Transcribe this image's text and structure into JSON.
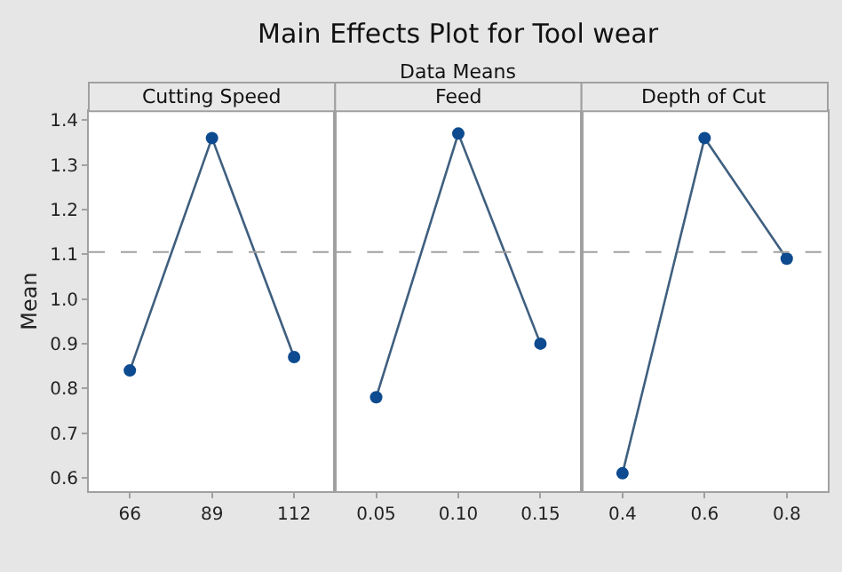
{
  "chart_data": [
    {
      "type": "line",
      "title": "Cutting Speed",
      "annotations": [
        "Main Effects Plot for Tool wear",
        "Data Means"
      ],
      "ylabel": "Mean",
      "categories": [
        "66",
        "89",
        "112"
      ],
      "series": [
        {
          "color": "#0d4a8f",
          "values": [
            0.84,
            1.36,
            0.87
          ]
        }
      ],
      "ylim": [
        0.57,
        1.42
      ],
      "yticks": [
        0.6,
        0.7,
        0.8,
        0.9,
        {
          "value": 1,
          "label": "1.0"
        },
        1.1,
        1.2,
        1.3,
        1.4
      ],
      "ref_lines": [
        {
          "axis": "y",
          "value": 1.105,
          "color": "#a0a0a0",
          "line_style": "dashed"
        }
      ],
      "marker": "circle"
    },
    {
      "type": "line",
      "title": "Feed",
      "categories": [
        "0.05",
        "0.10",
        "0.15"
      ],
      "series": [
        {
          "color": "#0d4a8f",
          "values": [
            0.78,
            1.37,
            0.9
          ]
        }
      ],
      "ylim": [
        0.57,
        1.42
      ],
      "tick_labels": "x",
      "ref_lines": [
        {
          "axis": "y",
          "value": 1.105,
          "color": "#a0a0a0",
          "line_style": "dashed"
        }
      ],
      "marker": "circle"
    },
    {
      "type": "line",
      "title": "Depth of Cut",
      "categories": [
        "0.4",
        "0.6",
        "0.8"
      ],
      "series": [
        {
          "color": "#0d4a8f",
          "values": [
            0.61,
            1.36,
            1.09
          ]
        }
      ],
      "ylim": [
        0.57,
        1.42
      ],
      "tick_labels": "x",
      "ref_lines": [
        {
          "axis": "y",
          "value": 1.105,
          "color": "#a0a0a0",
          "line_style": "dashed"
        }
      ],
      "marker": "circle"
    }
  ]
}
